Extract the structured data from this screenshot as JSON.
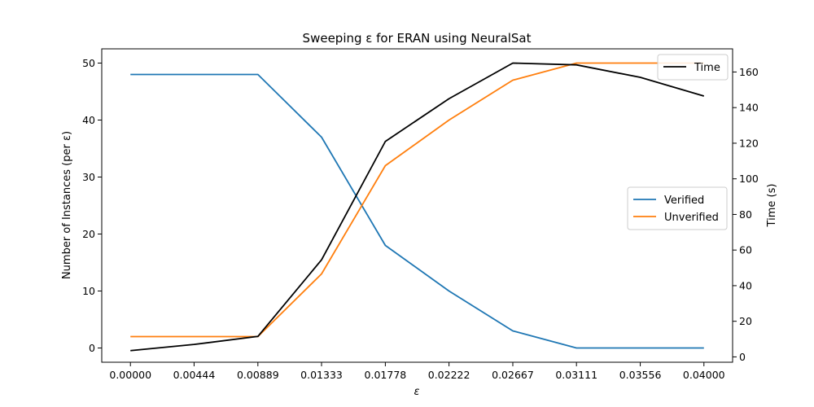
{
  "chart_data": {
    "type": "line",
    "title": "Sweeping ε for ERAN using NeuralSat",
    "xlabel": "ε",
    "ylabel_left": "Number of Instances (per ε)",
    "ylabel_right": "Time (s)",
    "x": [
      0.0,
      0.00444,
      0.00889,
      0.01333,
      0.01778,
      0.02222,
      0.02667,
      0.03111,
      0.03556,
      0.04
    ],
    "x_tick_labels": [
      "0.00000",
      "0.00444",
      "0.00889",
      "0.01333",
      "0.01778",
      "0.02222",
      "0.02667",
      "0.03111",
      "0.03556",
      "0.04000"
    ],
    "xlim": [
      -0.002,
      0.042
    ],
    "ylim_left": [
      -2.5,
      52.5
    ],
    "yticks_left": [
      0,
      10,
      20,
      30,
      40,
      50
    ],
    "ylim_right": [
      -3,
      173
    ],
    "yticks_right": [
      0,
      20,
      40,
      60,
      80,
      100,
      120,
      140,
      160
    ],
    "grid": false,
    "series": [
      {
        "name": "Verified",
        "axis": "left",
        "color": "#1f77b4",
        "values": [
          48,
          48,
          48,
          37,
          18,
          10,
          3,
          0,
          0,
          0
        ]
      },
      {
        "name": "Unverified",
        "axis": "left",
        "color": "#ff7f0e",
        "values": [
          2,
          2,
          2,
          13,
          32,
          40,
          47,
          50,
          50,
          50
        ]
      },
      {
        "name": "Time",
        "axis": "right",
        "color": "#000000",
        "values": [
          3.5,
          7,
          11.5,
          54.5,
          121,
          145,
          165,
          164,
          157,
          146.5
        ]
      }
    ],
    "legends": [
      {
        "placement": "center-right",
        "entries": [
          "Verified",
          "Unverified"
        ]
      },
      {
        "placement": "top-right",
        "entries": [
          "Time"
        ]
      }
    ]
  }
}
